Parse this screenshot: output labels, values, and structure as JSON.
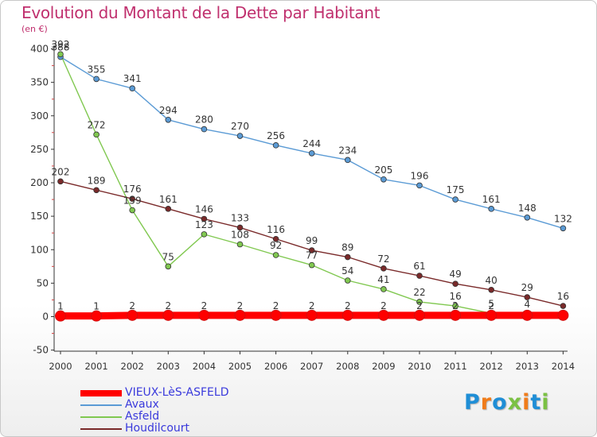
{
  "logo": {
    "text": "Proxiti",
    "colors": [
      "#1f8ed6",
      "#f07c1a",
      "#1f8ed6",
      "#7bc143",
      "#f07c1a",
      "#1f8ed6",
      "#7bc143"
    ]
  },
  "chart_data": {
    "type": "line",
    "title": "Evolution du Montant de la Dette par Habitant",
    "subtitle": "(en €)",
    "xlabel": "",
    "ylabel": "",
    "x": [
      "2000",
      "2001",
      "2002",
      "2003",
      "2004",
      "2005",
      "2006",
      "2007",
      "2008",
      "2009",
      "2010",
      "2011",
      "2012",
      "2013",
      "2014"
    ],
    "ylim": [
      -50,
      400
    ],
    "yticks": [
      -50,
      0,
      50,
      100,
      150,
      200,
      250,
      300,
      350,
      400
    ],
    "grid": false,
    "legend_position": "bottom-left",
    "series": [
      {
        "name": "VIEUX-LèS-ASFELD",
        "color": "#ff0000",
        "marker_fill": "#ff0000",
        "values": [
          1,
          1,
          2,
          2,
          2,
          2,
          2,
          2,
          2,
          2,
          2,
          2,
          2,
          2,
          2
        ],
        "labels": [
          "1",
          "1",
          "2",
          "2",
          "2",
          "2",
          "2",
          "2",
          "2",
          "2",
          "2",
          "2",
          "2",
          "",
          ""
        ]
      },
      {
        "name": "Avaux",
        "color": "#5b9bd5",
        "marker_fill": "#5b9bd5",
        "values": [
          388,
          355,
          341,
          294,
          280,
          270,
          256,
          244,
          234,
          205,
          196,
          175,
          161,
          148,
          132
        ],
        "labels": [
          "388",
          "355",
          "341",
          "294",
          "280",
          "270",
          "256",
          "244",
          "234",
          "205",
          "196",
          "175",
          "161",
          "148",
          "132"
        ]
      },
      {
        "name": "Asfeld",
        "color": "#80c850",
        "marker_fill": "#80c850",
        "values": [
          392,
          272,
          159,
          75,
          123,
          108,
          92,
          77,
          54,
          41,
          22,
          16,
          5,
          4,
          4
        ],
        "labels": [
          "392",
          "272",
          "159",
          "75",
          "123",
          "108",
          "92",
          "77",
          "54",
          "41",
          "22",
          "16",
          "5",
          "4",
          ""
        ]
      },
      {
        "name": "Houdilcourt",
        "color": "#7a2a2a",
        "marker_fill": "#7a2a2a",
        "values": [
          202,
          189,
          176,
          161,
          146,
          133,
          116,
          99,
          89,
          72,
          61,
          49,
          40,
          29,
          16
        ],
        "labels": [
          "202",
          "189",
          "176",
          "161",
          "146",
          "133",
          "116",
          "99",
          "89",
          "72",
          "61",
          "49",
          "40",
          "29",
          "16"
        ]
      }
    ]
  }
}
